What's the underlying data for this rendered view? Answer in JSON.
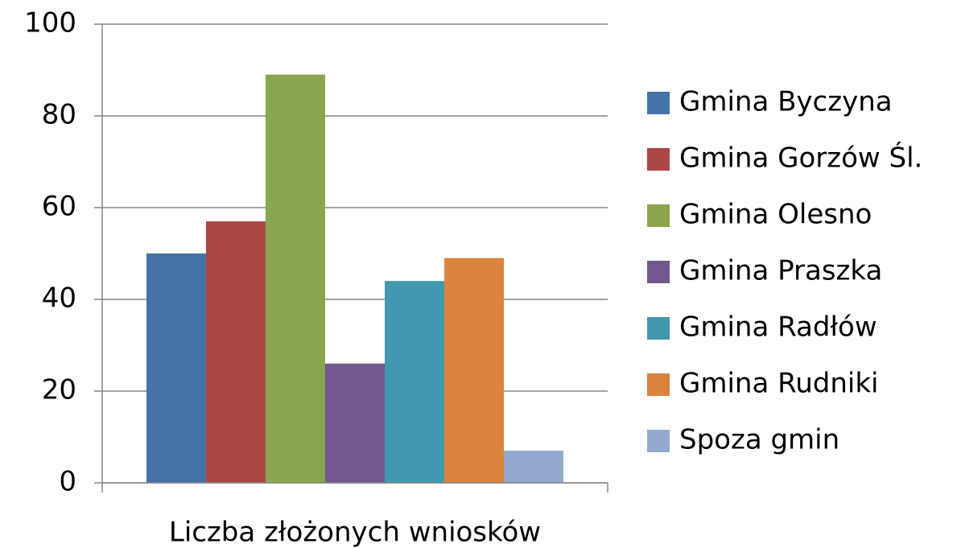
{
  "chart_data": {
    "type": "bar",
    "categories": [
      "Liczba złożonych wniosków"
    ],
    "series": [
      {
        "name": "Gmina Byczyna",
        "color": "#4572a7",
        "values": [
          50
        ]
      },
      {
        "name": "Gmina Gorzów Śl.",
        "color": "#aa4643",
        "values": [
          57
        ]
      },
      {
        "name": "Gmina Olesno",
        "color": "#89a54e",
        "values": [
          89
        ]
      },
      {
        "name": "Gmina Praszka",
        "color": "#71588f",
        "values": [
          26
        ]
      },
      {
        "name": "Gmina Radłów",
        "color": "#4198af",
        "values": [
          44
        ]
      },
      {
        "name": "Gmina Rudniki",
        "color": "#db843d",
        "values": [
          49
        ]
      },
      {
        "name": "Spoza gmin",
        "color": "#93a9cf",
        "values": [
          7
        ]
      }
    ],
    "ylim": [
      0,
      100
    ],
    "yticks": [
      0,
      20,
      40,
      60,
      80,
      100
    ],
    "grid": true,
    "legend": "right"
  }
}
